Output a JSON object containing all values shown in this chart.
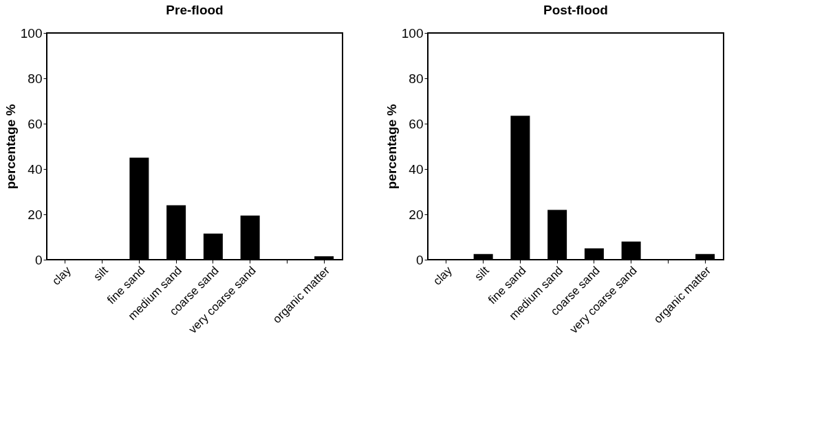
{
  "chart_data": [
    {
      "type": "bar",
      "title": "Pre-flood",
      "ylabel": "percentage %",
      "categories": [
        "clay",
        "silt",
        "fine sand",
        "medium sand",
        "coarse sand",
        "very coarse sand",
        null,
        "organic matter"
      ],
      "values": [
        0,
        0.1,
        45,
        24,
        11.5,
        19.5,
        0,
        1.5
      ],
      "color": "#000000",
      "ylim": [
        0,
        100
      ],
      "yticks": [
        0,
        20,
        40,
        60,
        80,
        100
      ],
      "grid": false
    },
    {
      "type": "bar",
      "title": "Post-flood",
      "ylabel": "percentage %",
      "categories": [
        "clay",
        "silt",
        "fine sand",
        "medium sand",
        "coarse sand",
        "very coarse sand",
        null,
        "organic matter"
      ],
      "values": [
        0,
        2.5,
        63.5,
        22,
        5,
        8,
        0,
        2.5
      ],
      "color": "#000000",
      "ylim": [
        0,
        100
      ],
      "yticks": [
        0,
        20,
        40,
        60,
        80,
        100
      ],
      "grid": false
    }
  ]
}
